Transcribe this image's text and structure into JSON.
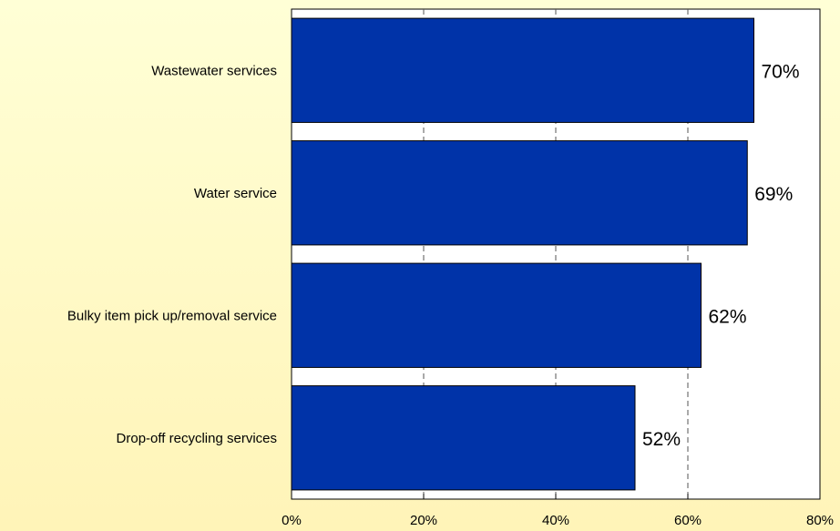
{
  "chart_data": {
    "type": "bar",
    "orientation": "horizontal",
    "categories": [
      "Wastewater services",
      "Water service",
      "Bulky item pick up/removal service",
      "Drop-off recycling services"
    ],
    "values": [
      70,
      69,
      62,
      52
    ],
    "data_labels": [
      "70%",
      "69%",
      "62%",
      "52%"
    ],
    "xlim": [
      0,
      80
    ],
    "x_ticks": [
      0,
      20,
      40,
      60,
      80
    ],
    "x_tick_labels": [
      "0%",
      "20%",
      "40%",
      "60%",
      "80%"
    ],
    "grid": "vertical dashed",
    "colors": {
      "bar": "#0033A8",
      "bar_border": "#000000",
      "plot_bg": "#FFFFFF",
      "page_bg": "#FFF8C8"
    }
  }
}
